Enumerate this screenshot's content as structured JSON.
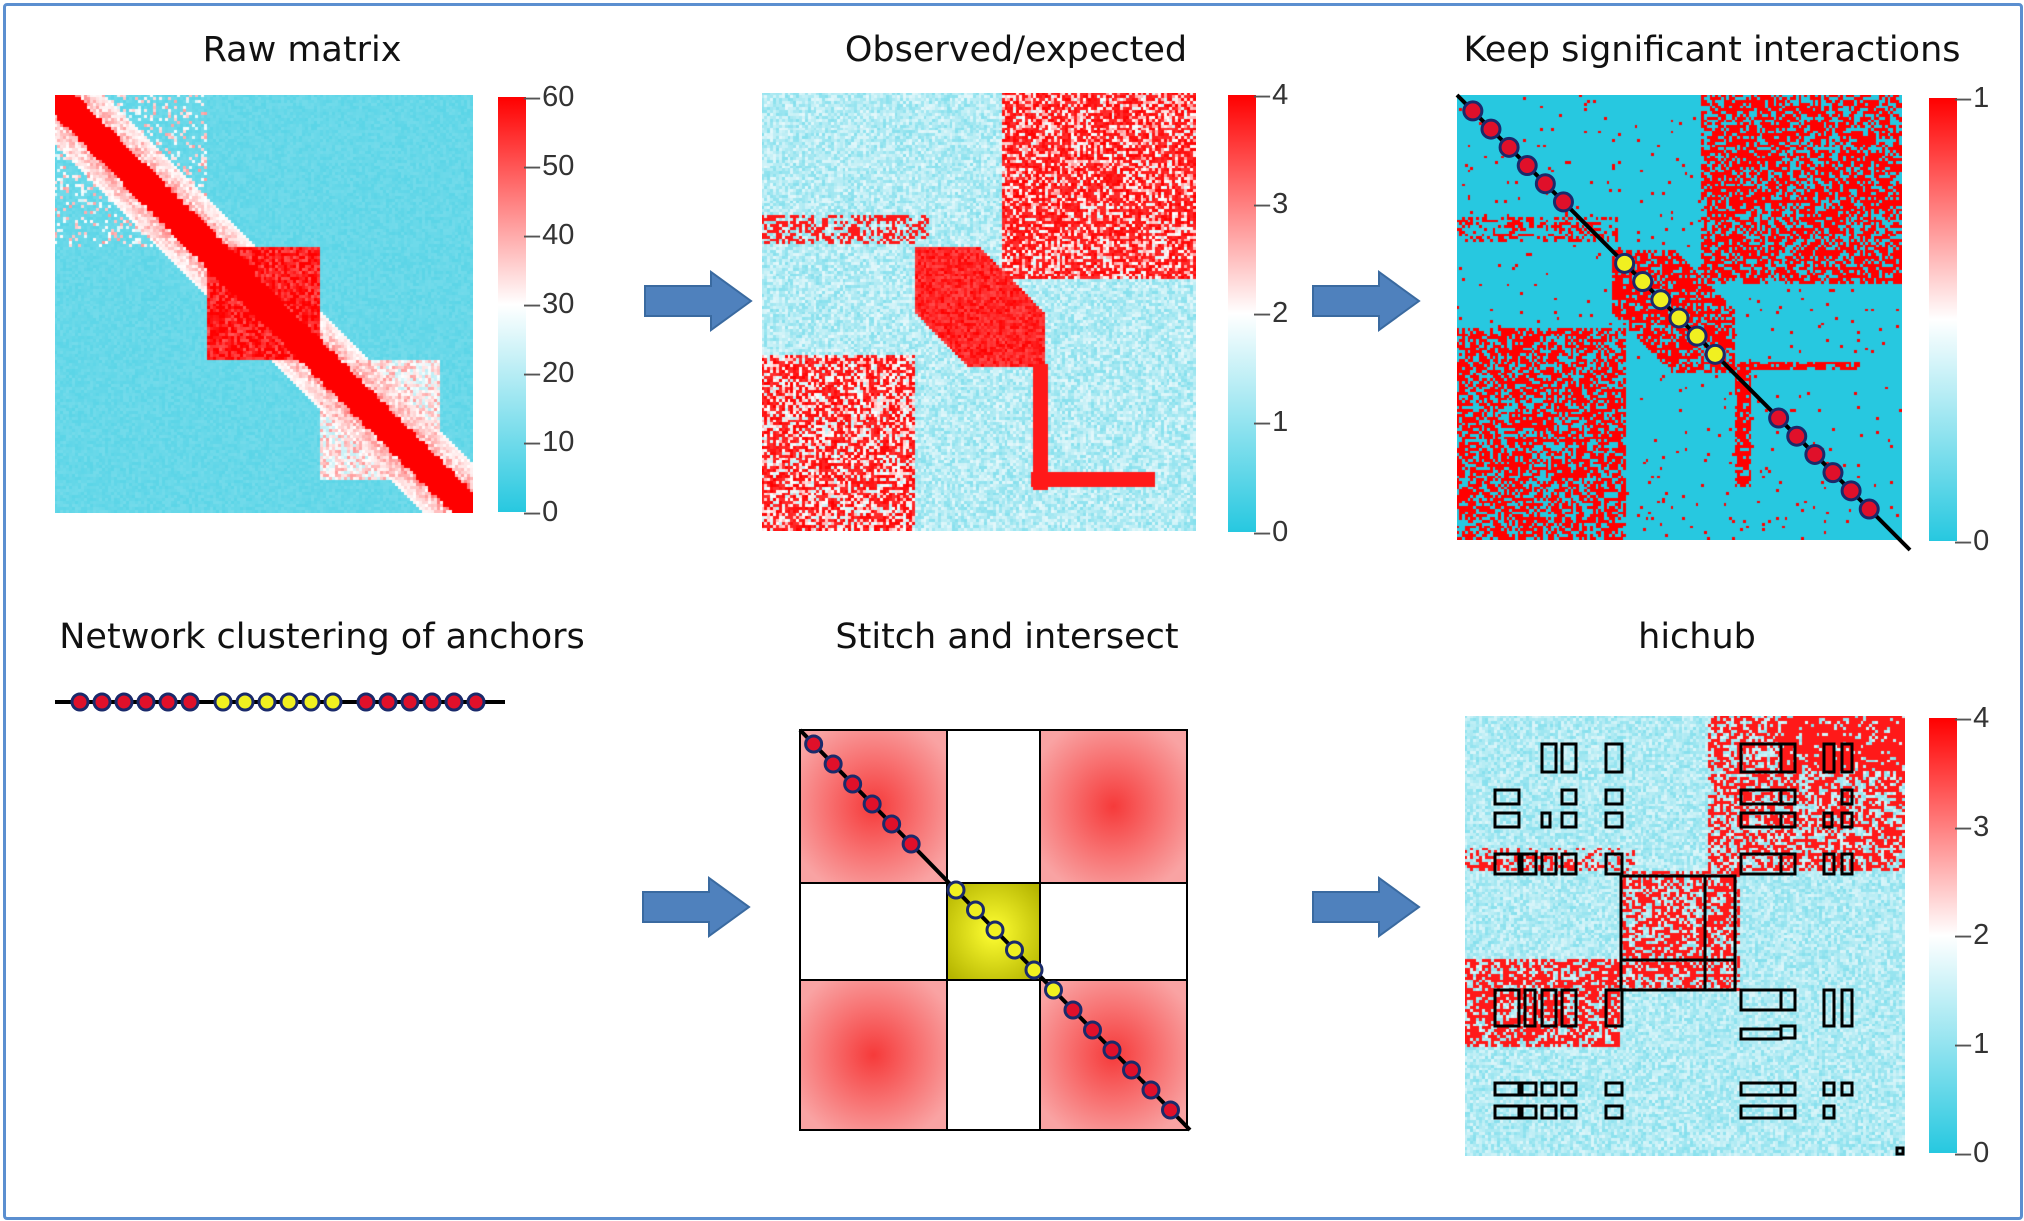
{
  "titles": {
    "raw": "Raw matrix",
    "oe": "Observed/expected",
    "sig": "Keep significant interactions",
    "network": "Network clustering of anchors",
    "stitch": "Stitch and intersect",
    "hichub": "hichub"
  },
  "colorbars": {
    "raw": [
      "60",
      "50",
      "40",
      "30",
      "20",
      "10",
      "0"
    ],
    "oe": [
      "4",
      "3",
      "2",
      "1",
      "0"
    ],
    "sig": [
      "1",
      "0"
    ],
    "hichub": [
      "4",
      "3",
      "2",
      "1",
      "0"
    ]
  },
  "colors": {
    "low": "#27c8e0",
    "mid": "#ffffff",
    "high": "#ff0000",
    "arrow": "#4f81bd",
    "anchor_red": "#e0102a",
    "anchor_yellow": "#f0f020",
    "frame": "#5b8fd0"
  },
  "anchors": {
    "red_group_1": 6,
    "yellow_group": 6,
    "red_group_2": 6
  },
  "icons": [
    "arrow-right-icon"
  ]
}
